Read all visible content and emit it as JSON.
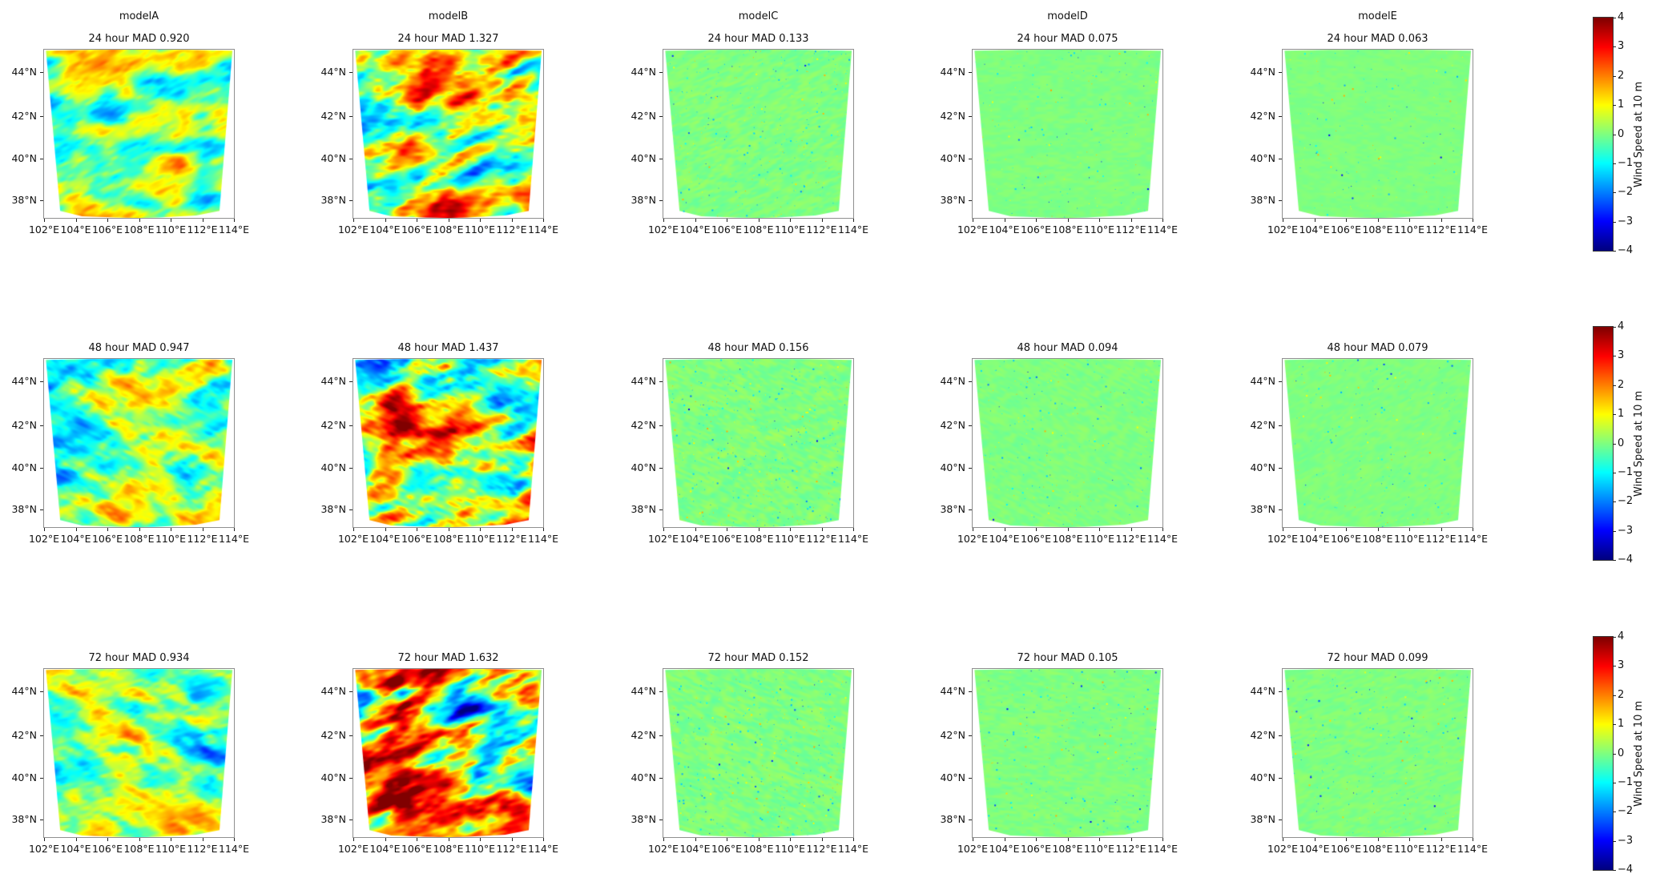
{
  "figure": {
    "columns": [
      {
        "id": "modelA",
        "label": "modelA"
      },
      {
        "id": "modelB",
        "label": "modelB"
      },
      {
        "id": "modelC",
        "label": "modelC"
      },
      {
        "id": "modelD",
        "label": "modelD"
      },
      {
        "id": "modelE",
        "label": "modelE"
      }
    ],
    "rows": [
      {
        "hour": 24,
        "panels": [
          {
            "model": "modelA",
            "subtitle": "24 hour MAD 0.920",
            "mad": 0.92
          },
          {
            "model": "modelB",
            "subtitle": "24 hour MAD 1.327",
            "mad": 1.327
          },
          {
            "model": "modelC",
            "subtitle": "24 hour MAD 0.133",
            "mad": 0.133
          },
          {
            "model": "modelD",
            "subtitle": "24 hour MAD 0.075",
            "mad": 0.075
          },
          {
            "model": "modelE",
            "subtitle": "24 hour MAD 0.063",
            "mad": 0.063
          }
        ]
      },
      {
        "hour": 48,
        "panels": [
          {
            "model": "modelA",
            "subtitle": "48 hour MAD 0.947",
            "mad": 0.947
          },
          {
            "model": "modelB",
            "subtitle": "48 hour MAD 1.437",
            "mad": 1.437
          },
          {
            "model": "modelC",
            "subtitle": "48 hour MAD 0.156",
            "mad": 0.156
          },
          {
            "model": "modelD",
            "subtitle": "48 hour MAD 0.094",
            "mad": 0.094
          },
          {
            "model": "modelE",
            "subtitle": "48 hour MAD 0.079",
            "mad": 0.079
          }
        ]
      },
      {
        "hour": 72,
        "panels": [
          {
            "model": "modelA",
            "subtitle": "72 hour MAD 0.934",
            "mad": 0.934
          },
          {
            "model": "modelB",
            "subtitle": "72 hour MAD 1.632",
            "mad": 1.632
          },
          {
            "model": "modelC",
            "subtitle": "72 hour MAD 0.152",
            "mad": 0.152
          },
          {
            "model": "modelD",
            "subtitle": "72 hour MAD 0.105",
            "mad": 0.105
          },
          {
            "model": "modelE",
            "subtitle": "72 hour MAD 0.099",
            "mad": 0.099
          }
        ]
      }
    ],
    "axes": {
      "x_ticks": [
        "102°E",
        "104°E",
        "106°E",
        "108°E",
        "110°E",
        "112°E",
        "114°E"
      ],
      "y_ticks": [
        "44°N",
        "42°N",
        "40°N",
        "38°N"
      ]
    },
    "colorbar": {
      "label": "Wind Speed at 10 m",
      "ticks": [
        "4",
        "3",
        "2",
        "1",
        "0",
        "−1",
        "−2",
        "−3",
        "−4"
      ],
      "vmin": -4,
      "vmax": 4,
      "colormap": "jet"
    }
  },
  "chart_data": {
    "type": "heatmap",
    "title": "",
    "description": "Grid of 15 map panels (Lambert-projected region 102°E–114°E, ~37°N–45°N) showing wind-speed difference fields for five models at three forecast lead times, each annotated with its MAD value; jet colormap shared per row.",
    "models": [
      "modelA",
      "modelB",
      "modelC",
      "modelD",
      "modelE"
    ],
    "forecast_hours": [
      24,
      48,
      72
    ],
    "series": [
      {
        "name": "modelA",
        "values": [
          0.92,
          0.947,
          0.934
        ]
      },
      {
        "name": "modelB",
        "values": [
          1.327,
          1.437,
          1.632
        ]
      },
      {
        "name": "modelC",
        "values": [
          0.133,
          0.156,
          0.152
        ]
      },
      {
        "name": "modelD",
        "values": [
          0.075,
          0.094,
          0.105
        ]
      },
      {
        "name": "modelE",
        "values": [
          0.063,
          0.079,
          0.099
        ]
      }
    ],
    "value_name": "MAD",
    "x_ticks": [
      "102°E",
      "104°E",
      "106°E",
      "108°E",
      "110°E",
      "112°E",
      "114°E"
    ],
    "y_ticks": [
      "44°N",
      "42°N",
      "40°N",
      "38°N"
    ],
    "colorbar": {
      "label": "Wind Speed at 10 m",
      "range": [
        -4,
        4
      ],
      "tick_step": 1,
      "colormap": "jet"
    },
    "legend_position": "colorbar-right-per-row",
    "grid": false
  }
}
